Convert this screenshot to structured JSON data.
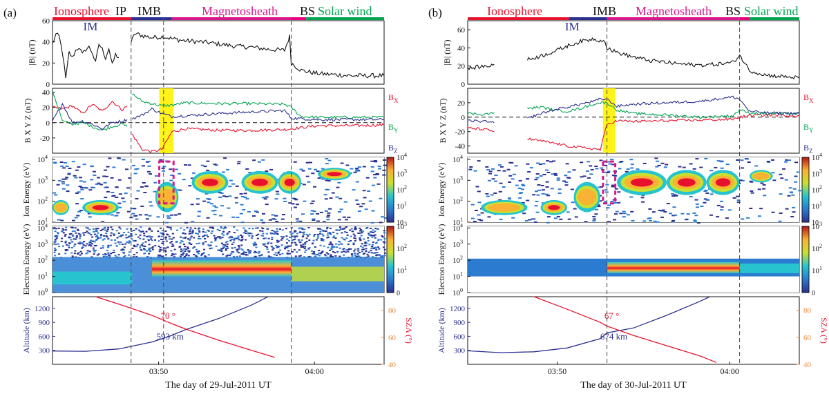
{
  "figure": {
    "panels": [
      {
        "id": "a",
        "label": "(a)",
        "xlabel": "The day of 29-Jul-2011 UT",
        "xtick_labels": [
          "03:50",
          "04:00"
        ],
        "regions": [
          {
            "name": "Ionosphere",
            "start": 0.0,
            "end": 0.237,
            "color": "#e8112d"
          },
          {
            "name": "IP",
            "start": 0.237,
            "end": 0.335,
            "color": "#2b2f8f"
          },
          {
            "name": "IMB",
            "start": 0.335,
            "end": 0.36,
            "color": "#2b2f8f"
          },
          {
            "name": "Magnetosheath",
            "start": 0.36,
            "end": 0.72,
            "color": "#d6168b"
          },
          {
            "name": "BS",
            "start": 0.72,
            "end": 0.765,
            "color": "#e6007e"
          },
          {
            "name": "Solar wind",
            "start": 0.765,
            "end": 1.0,
            "color": "#00a550"
          }
        ],
        "boundary_lines": [
          0.237,
          0.335,
          0.72
        ],
        "im_label": "IM",
        "highlight": [
          0.322,
          0.365
        ],
        "annotation_sza": "70 °",
        "annotation_alt": "593 km"
      },
      {
        "id": "b",
        "label": "(b)",
        "xlabel": "The day of 30-Jul-2011 UT",
        "xtick_labels": [
          "03:50",
          "04:00"
        ],
        "regions": [
          {
            "name": "Ionosphere",
            "start": 0.0,
            "end": 0.305,
            "color": "#e8112d"
          },
          {
            "name": "IMB",
            "start": 0.305,
            "end": 0.42,
            "color": "#2b2f8f"
          },
          {
            "name": "Magnetosheath",
            "start": 0.42,
            "end": 0.82,
            "color": "#d6168b"
          },
          {
            "name": "BS",
            "start": 0.82,
            "end": 0.85,
            "color": "#e6007e"
          },
          {
            "name": "Solar wind",
            "start": 0.85,
            "end": 1.0,
            "color": "#00a550"
          }
        ],
        "boundary_lines": [
          0.42,
          0.82
        ],
        "im_label": "IM",
        "highlight": [
          0.408,
          0.445
        ],
        "annotation_sza": "67 °",
        "annotation_alt": "674 km"
      }
    ]
  },
  "chart_data": {
    "type": "line",
    "rows": [
      {
        "id": "B",
        "ylabel": "|B| (nT)",
        "yticks": [
          0,
          20,
          40,
          60
        ],
        "yrange_a": [
          0,
          60
        ],
        "yticks_b": [
          0,
          20,
          40,
          60
        ],
        "yrange_b": [
          0,
          70
        ]
      },
      {
        "id": "Bxyz",
        "ylabel": "B X Y Z (nT)",
        "yticks": [
          -20,
          0,
          20,
          40
        ],
        "yrange_a": [
          -40,
          45
        ],
        "yticks_b": [
          -40,
          -20,
          0,
          20
        ],
        "yrange_b": [
          -50,
          40
        ],
        "legend": [
          {
            "name": "B",
            "sub": "X",
            "color": "#e8112d"
          },
          {
            "name": "B",
            "sub": "Y",
            "color": "#00a550"
          },
          {
            "name": "B",
            "sub": "Z",
            "color": "#2b2f8f"
          }
        ]
      },
      {
        "id": "ion",
        "ylabel": "Ion Energy (eV)",
        "ytick_exps": [
          "1",
          "2",
          "3",
          "4"
        ],
        "colorbar_exps": [
          "0",
          "1",
          "2",
          "3",
          "4"
        ]
      },
      {
        "id": "electron",
        "ylabel": "Electron Energy (eV)",
        "ytick_exps": [
          "0",
          "1",
          "2",
          "3",
          "4"
        ],
        "colorbar_exps": [
          "0",
          "1",
          "2",
          "3"
        ]
      },
      {
        "id": "orbit",
        "ylabel_left": "Altitude (km)",
        "ylabel_right": "SZA (°)",
        "yticks_left": [
          300,
          600,
          900,
          1200
        ],
        "yticks_right": [
          40,
          60,
          80
        ],
        "left_color": "#2b2f8f",
        "right_color": "#e8112d"
      }
    ],
    "colorbar_base": "10",
    "colorbar_zero": "0",
    "colorbar_exps_short": [
      "1",
      "2",
      "3",
      "4"
    ],
    "series": [
      {
        "name": "|B| a",
        "key": "Ba",
        "color": "#111111"
      },
      {
        "name": "Bx a",
        "key": "Bxa",
        "color": "#e8112d"
      },
      {
        "name": "By a",
        "key": "Bya",
        "color": "#00a550"
      },
      {
        "name": "Bz a",
        "key": "Bza",
        "color": "#2b2f8f"
      },
      {
        "name": "|B| b",
        "key": "Bb",
        "color": "#111111"
      },
      {
        "name": "Bx b",
        "key": "Bxb",
        "color": "#e8112d"
      },
      {
        "name": "By b",
        "key": "Byb",
        "color": "#00a550"
      },
      {
        "name": "Bz b",
        "key": "Bzb",
        "color": "#2b2f8f"
      }
    ],
    "data": {
      "Ba": [
        [
          0.0,
          38
        ],
        [
          0.01,
          47
        ],
        [
          0.02,
          45
        ],
        [
          0.03,
          30
        ],
        [
          0.04,
          5
        ],
        [
          0.05,
          30
        ],
        [
          0.06,
          25
        ],
        [
          0.07,
          32
        ],
        [
          0.08,
          35
        ],
        [
          0.09,
          28
        ],
        [
          0.1,
          33
        ],
        [
          0.11,
          35
        ],
        [
          0.12,
          30
        ],
        [
          0.13,
          20
        ],
        [
          0.14,
          38
        ],
        [
          0.15,
          33
        ],
        [
          0.16,
          25
        ],
        [
          0.17,
          34
        ],
        [
          0.18,
          18
        ],
        [
          0.19,
          28
        ],
        [
          0.2,
          25
        ],
        [
          null,
          null
        ],
        [
          0.237,
          40
        ],
        [
          0.25,
          48
        ],
        [
          0.27,
          46
        ],
        [
          0.3,
          44
        ],
        [
          0.335,
          45
        ],
        [
          0.36,
          43
        ],
        [
          0.4,
          41
        ],
        [
          0.45,
          40
        ],
        [
          0.5,
          38
        ],
        [
          0.55,
          36
        ],
        [
          0.6,
          35
        ],
        [
          0.65,
          33
        ],
        [
          0.7,
          32
        ],
        [
          0.715,
          45
        ],
        [
          0.72,
          20
        ],
        [
          0.75,
          13
        ],
        [
          0.8,
          10
        ],
        [
          0.9,
          8
        ],
        [
          1.0,
          8
        ]
      ],
      "Bxa": [
        [
          0.0,
          20
        ],
        [
          0.03,
          18
        ],
        [
          0.06,
          22
        ],
        [
          0.09,
          12
        ],
        [
          0.12,
          24
        ],
        [
          0.15,
          15
        ],
        [
          0.18,
          28
        ],
        [
          0.21,
          17
        ],
        [
          0.225,
          22
        ],
        [
          null,
          null
        ],
        [
          0.24,
          -15
        ],
        [
          0.27,
          -35
        ],
        [
          0.3,
          -38
        ],
        [
          0.33,
          -35
        ],
        [
          0.36,
          -12
        ],
        [
          0.4,
          -8
        ],
        [
          0.5,
          -10
        ],
        [
          0.6,
          -10
        ],
        [
          0.7,
          -9
        ],
        [
          0.72,
          -8
        ],
        [
          0.8,
          -4
        ],
        [
          0.9,
          -4
        ],
        [
          1.0,
          -3
        ]
      ],
      "Bya": [
        [
          0.0,
          42
        ],
        [
          0.03,
          2
        ],
        [
          0.06,
          -2
        ],
        [
          0.09,
          0
        ],
        [
          0.12,
          -5
        ],
        [
          0.15,
          -10
        ],
        [
          0.18,
          -5
        ],
        [
          0.21,
          -2
        ],
        [
          0.225,
          -5
        ],
        [
          null,
          null
        ],
        [
          0.24,
          38
        ],
        [
          0.27,
          28
        ],
        [
          0.3,
          25
        ],
        [
          0.33,
          22
        ],
        [
          0.36,
          23
        ],
        [
          0.4,
          26
        ],
        [
          0.5,
          25
        ],
        [
          0.6,
          25
        ],
        [
          0.7,
          24
        ],
        [
          0.72,
          20
        ],
        [
          0.75,
          8
        ],
        [
          0.8,
          7
        ],
        [
          0.9,
          7
        ],
        [
          1.0,
          7
        ]
      ],
      "Bza": [
        [
          0.0,
          2
        ],
        [
          0.03,
          25
        ],
        [
          0.06,
          0
        ],
        [
          0.09,
          2
        ],
        [
          0.12,
          -2
        ],
        [
          0.15,
          -8
        ],
        [
          0.18,
          0
        ],
        [
          0.21,
          2
        ],
        [
          0.225,
          4
        ],
        [
          null,
          null
        ],
        [
          0.24,
          5
        ],
        [
          0.27,
          10
        ],
        [
          0.3,
          18
        ],
        [
          0.33,
          12
        ],
        [
          0.36,
          8
        ],
        [
          0.4,
          9
        ],
        [
          0.5,
          12
        ],
        [
          0.6,
          14
        ],
        [
          0.7,
          16
        ],
        [
          0.72,
          6
        ],
        [
          0.8,
          4
        ],
        [
          0.9,
          4
        ],
        [
          1.0,
          4
        ]
      ],
      "Bb": [
        [
          0.0,
          17
        ],
        [
          0.03,
          19
        ],
        [
          0.06,
          20
        ],
        [
          0.08,
          22
        ],
        [
          null,
          null
        ],
        [
          0.18,
          27
        ],
        [
          0.22,
          31
        ],
        [
          0.26,
          36
        ],
        [
          0.3,
          42
        ],
        [
          0.34,
          47
        ],
        [
          0.38,
          50
        ],
        [
          0.4,
          48
        ],
        [
          0.41,
          50
        ],
        [
          0.42,
          40
        ],
        [
          0.45,
          35
        ],
        [
          0.5,
          30
        ],
        [
          0.55,
          26
        ],
        [
          0.6,
          24
        ],
        [
          0.65,
          22
        ],
        [
          0.7,
          21
        ],
        [
          0.75,
          22
        ],
        [
          0.8,
          24
        ],
        [
          0.82,
          32
        ],
        [
          0.85,
          15
        ],
        [
          0.9,
          10
        ],
        [
          1.0,
          7
        ]
      ],
      "Bxb": [
        [
          0.0,
          -15
        ],
        [
          0.05,
          -17
        ],
        [
          0.08,
          -20
        ],
        [
          null,
          null
        ],
        [
          0.18,
          -30
        ],
        [
          0.22,
          -33
        ],
        [
          0.26,
          -36
        ],
        [
          0.3,
          -40
        ],
        [
          0.34,
          -42
        ],
        [
          0.38,
          -44
        ],
        [
          0.4,
          -45
        ],
        [
          0.42,
          -10
        ],
        [
          0.45,
          -5
        ],
        [
          0.5,
          -6
        ],
        [
          0.6,
          -5
        ],
        [
          0.7,
          -4
        ],
        [
          0.8,
          -3
        ],
        [
          0.82,
          0
        ],
        [
          0.85,
          2
        ],
        [
          0.9,
          3
        ],
        [
          1.0,
          2
        ]
      ],
      "Byb": [
        [
          0.0,
          5
        ],
        [
          0.05,
          4
        ],
        [
          0.08,
          6
        ],
        [
          null,
          null
        ],
        [
          0.18,
          12
        ],
        [
          0.22,
          14
        ],
        [
          0.26,
          10
        ],
        [
          0.3,
          8
        ],
        [
          0.34,
          12
        ],
        [
          0.38,
          18
        ],
        [
          0.4,
          20
        ],
        [
          0.42,
          20
        ],
        [
          0.45,
          10
        ],
        [
          0.5,
          5
        ],
        [
          0.6,
          3
        ],
        [
          0.7,
          0
        ],
        [
          0.8,
          2
        ],
        [
          0.82,
          10
        ],
        [
          0.85,
          6
        ],
        [
          0.9,
          5
        ],
        [
          1.0,
          5
        ]
      ],
      "Bzb": [
        [
          0.0,
          -5
        ],
        [
          0.05,
          -6
        ],
        [
          0.08,
          -8
        ],
        [
          null,
          null
        ],
        [
          0.18,
          -2
        ],
        [
          0.22,
          5
        ],
        [
          0.26,
          10
        ],
        [
          0.3,
          14
        ],
        [
          0.34,
          18
        ],
        [
          0.38,
          22
        ],
        [
          0.4,
          25
        ],
        [
          0.42,
          25
        ],
        [
          0.45,
          15
        ],
        [
          0.5,
          18
        ],
        [
          0.6,
          20
        ],
        [
          0.7,
          22
        ],
        [
          0.8,
          28
        ],
        [
          0.82,
          25
        ],
        [
          0.85,
          8
        ],
        [
          0.9,
          6
        ],
        [
          1.0,
          5
        ]
      ],
      "alt_a": [
        [
          0.0,
          285
        ],
        [
          0.1,
          280
        ],
        [
          0.2,
          330
        ],
        [
          0.3,
          480
        ],
        [
          0.35,
          593
        ],
        [
          0.4,
          740
        ],
        [
          0.5,
          980
        ],
        [
          0.6,
          1270
        ],
        [
          0.65,
          1450
        ]
      ],
      "sza_a": [
        [
          0.13,
          1450
        ],
        [
          0.2,
          1290
        ],
        [
          0.3,
          1050
        ],
        [
          0.35,
          900
        ],
        [
          0.4,
          760
        ],
        [
          0.5,
          520
        ],
        [
          0.6,
          300
        ],
        [
          0.67,
          150
        ]
      ],
      "alt_b": [
        [
          0.0,
          290
        ],
        [
          0.1,
          250
        ],
        [
          0.2,
          270
        ],
        [
          0.3,
          350
        ],
        [
          0.4,
          550
        ],
        [
          0.42,
          674
        ],
        [
          0.5,
          780
        ],
        [
          0.6,
          1050
        ],
        [
          0.7,
          1350
        ],
        [
          0.73,
          1450
        ]
      ],
      "sza_b": [
        [
          0.2,
          1450
        ],
        [
          0.3,
          1180
        ],
        [
          0.4,
          900
        ],
        [
          0.42,
          820
        ],
        [
          0.5,
          620
        ],
        [
          0.6,
          400
        ],
        [
          0.7,
          180
        ],
        [
          0.75,
          40
        ]
      ]
    },
    "ion_blobs_a": [
      {
        "x0": 0.0,
        "x1": 0.05,
        "e": 1.7,
        "w": 0.3,
        "peak": "#f9b233"
      },
      {
        "x0": 0.09,
        "x1": 0.2,
        "e": 1.7,
        "w": 0.3,
        "peak": "#e8112d"
      },
      {
        "x0": 0.31,
        "x1": 0.38,
        "e": 2.2,
        "w": 0.6,
        "peak": "#f9b233"
      },
      {
        "x0": 0.42,
        "x1": 0.53,
        "e": 2.9,
        "w": 0.45,
        "peak": "#e8112d"
      },
      {
        "x0": 0.57,
        "x1": 0.68,
        "e": 2.9,
        "w": 0.45,
        "peak": "#e8112d"
      },
      {
        "x0": 0.68,
        "x1": 0.75,
        "e": 2.9,
        "w": 0.45,
        "peak": "#e8112d"
      },
      {
        "x0": 0.8,
        "x1": 0.9,
        "e": 3.3,
        "w": 0.25,
        "peak": "#e8112d"
      }
    ],
    "ion_blobs_b": [
      {
        "x0": 0.04,
        "x1": 0.18,
        "e": 1.7,
        "w": 0.3,
        "peak": "#f9b233"
      },
      {
        "x0": 0.22,
        "x1": 0.3,
        "e": 1.7,
        "w": 0.3,
        "peak": "#e8112d"
      },
      {
        "x0": 0.32,
        "x1": 0.4,
        "e": 2.2,
        "w": 0.6,
        "peak": "#f9b233"
      },
      {
        "x0": 0.45,
        "x1": 0.6,
        "e": 2.9,
        "w": 0.5,
        "peak": "#e8112d"
      },
      {
        "x0": 0.6,
        "x1": 0.72,
        "e": 2.9,
        "w": 0.5,
        "peak": "#e8112d"
      },
      {
        "x0": 0.72,
        "x1": 0.82,
        "e": 2.9,
        "w": 0.5,
        "peak": "#e8112d"
      },
      {
        "x0": 0.85,
        "x1": 0.92,
        "e": 3.2,
        "w": 0.25,
        "peak": "#f9b233"
      }
    ]
  }
}
